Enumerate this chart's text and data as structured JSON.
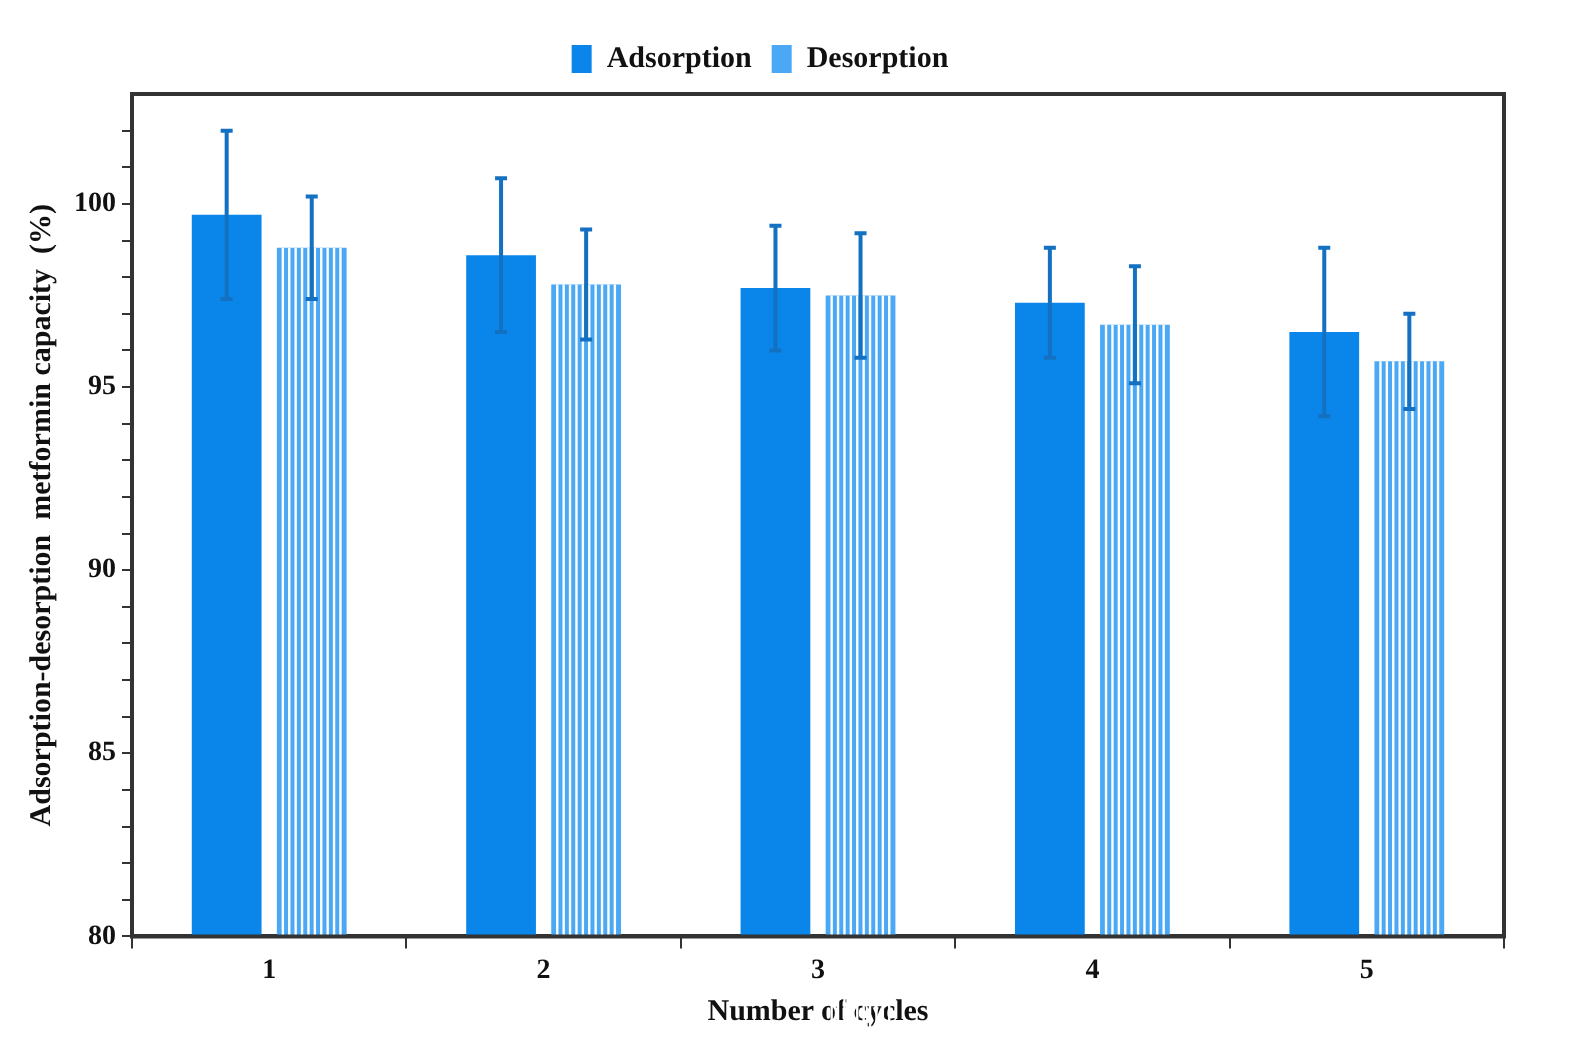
{
  "chart_data": {
    "type": "bar",
    "xlabel": "Number of cycles",
    "ylabel": "Adsorption-desorption  metformin capacity  (%)",
    "categories": [
      "1",
      "2",
      "3",
      "4",
      "5"
    ],
    "series": [
      {
        "name": "Adsorption",
        "color": "#0a86ea",
        "values": [
          99.7,
          98.6,
          97.7,
          97.3,
          96.5
        ],
        "errors": [
          2.3,
          2.1,
          1.7,
          1.5,
          2.3
        ]
      },
      {
        "name": "Desorption",
        "color": "#4aa8f5",
        "values": [
          98.8,
          97.8,
          97.5,
          96.7,
          95.7
        ],
        "errors": [
          1.4,
          1.5,
          1.7,
          1.6,
          1.3
        ]
      }
    ],
    "ylim": [
      80,
      103
    ],
    "yticks": [
      80,
      {
        "value": 81,
        "label": null
      },
      {
        "value": 82,
        "label": null
      },
      {
        "value": 83,
        "label": null
      },
      {
        "value": 84,
        "label": null
      },
      85,
      {
        "value": 86,
        "label": null
      },
      {
        "value": 87,
        "label": null
      },
      {
        "value": 88,
        "label": null
      },
      {
        "value": 89,
        "label": null
      },
      90,
      {
        "value": 91,
        "label": null
      },
      {
        "value": 92,
        "label": null
      },
      {
        "value": 93,
        "label": null
      },
      {
        "value": 94,
        "label": null
      },
      95,
      {
        "value": 96,
        "label": null
      },
      {
        "value": 97,
        "label": null
      },
      {
        "value": 98,
        "label": null
      },
      {
        "value": 99,
        "label": null
      },
      100,
      {
        "value": 101,
        "label": null
      },
      {
        "value": 102,
        "label": null
      }
    ],
    "grid": false,
    "legend": "top"
  }
}
